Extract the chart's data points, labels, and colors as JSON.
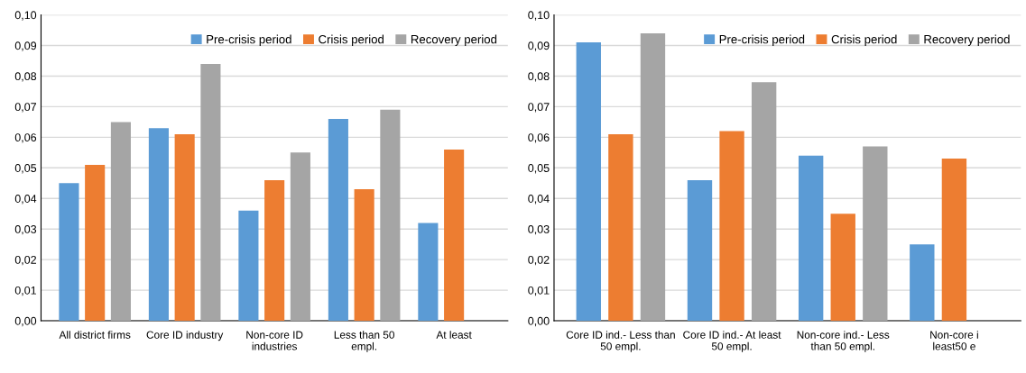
{
  "chart_data": [
    {
      "type": "bar",
      "categories": [
        "All district firms",
        "Core ID industry",
        "Non-core ID\nindustries",
        "Less than 50\nempl.",
        "At least"
      ],
      "series": [
        {
          "name": "Pre-crisis period",
          "color": "#5b9bd5",
          "values": [
            0.045,
            0.063,
            0.036,
            0.066,
            0.032
          ]
        },
        {
          "name": "Crisis period",
          "color": "#ed7d31",
          "values": [
            0.051,
            0.061,
            0.046,
            0.043,
            0.056
          ]
        },
        {
          "name": "Recovery period",
          "color": "#a5a5a5",
          "values": [
            0.065,
            0.084,
            0.055,
            0.069,
            null
          ]
        }
      ],
      "ylim": [
        0,
        0.1
      ],
      "yticks": [
        {
          "value": 0,
          "label": "0,00"
        },
        {
          "value": 0.01,
          "label": "0,01"
        },
        {
          "value": 0.02,
          "label": "0,02"
        },
        {
          "value": 0.03,
          "label": "0,03"
        },
        {
          "value": 0.04,
          "label": "0,04"
        },
        {
          "value": 0.05,
          "label": "0,05"
        },
        {
          "value": 0.06,
          "label": "0,06"
        },
        {
          "value": 0.07,
          "label": "0,07"
        },
        {
          "value": 0.08,
          "label": "0,08"
        },
        {
          "value": 0.09,
          "label": "0,09"
        },
        {
          "value": 0.1,
          "label": "0,10"
        }
      ],
      "grid": "y",
      "legend": "top right"
    },
    {
      "type": "bar",
      "categories": [
        "Core ID ind.- Less than\n50 empl.",
        "Core ID ind.- At least\n50 empl.",
        "Non-core ind.- Less\nthan 50 empl.",
        "Non-core i\nleast50 e"
      ],
      "series": [
        {
          "name": "Pre-crisis period",
          "color": "#5b9bd5",
          "values": [
            0.091,
            0.046,
            0.054,
            0.025
          ]
        },
        {
          "name": "Crisis period",
          "color": "#ed7d31",
          "values": [
            0.061,
            0.062,
            0.035,
            0.053
          ]
        },
        {
          "name": "Recovery period",
          "color": "#a5a5a5",
          "values": [
            0.094,
            0.078,
            0.057,
            null
          ]
        }
      ],
      "ylim": [
        0,
        0.1
      ],
      "yticks": [
        {
          "value": 0,
          "label": "0,00"
        },
        {
          "value": 0.01,
          "label": "0,01"
        },
        {
          "value": 0.02,
          "label": "0,02"
        },
        {
          "value": 0.03,
          "label": "0,03"
        },
        {
          "value": 0.04,
          "label": "0,04"
        },
        {
          "value": 0.05,
          "label": "0,05"
        },
        {
          "value": 0.06,
          "label": "0,06"
        },
        {
          "value": 0.07,
          "label": "0,07"
        },
        {
          "value": 0.08,
          "label": "0,08"
        },
        {
          "value": 0.09,
          "label": "0,09"
        },
        {
          "value": 0.1,
          "label": "0,10"
        }
      ],
      "grid": "y",
      "legend": "top right"
    }
  ]
}
